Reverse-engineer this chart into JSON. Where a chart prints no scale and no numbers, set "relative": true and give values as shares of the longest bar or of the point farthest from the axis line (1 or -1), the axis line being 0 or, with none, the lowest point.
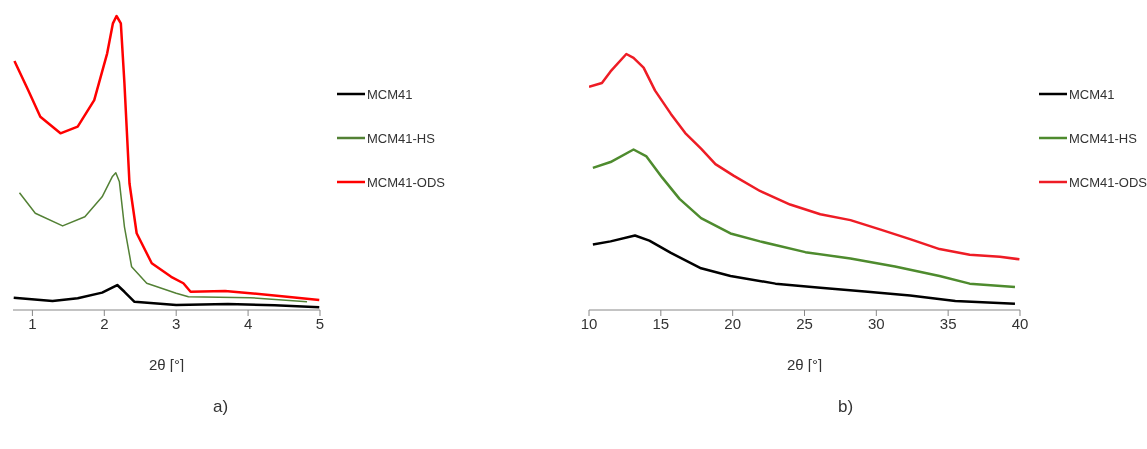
{
  "chart_data": [
    {
      "type": "line",
      "relative": true,
      "xlabel": "2θ [°]",
      "xlim": [
        0.73,
        5
      ],
      "xticks": [
        1,
        2,
        3,
        4,
        5
      ],
      "legend": "top right",
      "annotations": [
        "a)"
      ],
      "series": [
        {
          "name": "MCM41",
          "color": "#000000",
          "x": [
            0.74,
            1.28,
            1.63,
            1.97,
            2.18,
            2.28,
            2.42,
            3.0,
            3.72,
            4.37,
            4.99
          ],
          "values": [
            0.042,
            0.031,
            0.04,
            0.059,
            0.085,
            0.062,
            0.028,
            0.017,
            0.02,
            0.016,
            0.009
          ]
        },
        {
          "name": "MCM41-HS",
          "color": "#538135",
          "x": [
            0.82,
            1.04,
            1.42,
            1.73,
            1.97,
            2.11,
            2.16,
            2.21,
            2.28,
            2.38,
            2.59,
            3.0,
            3.17,
            4.03,
            4.82
          ],
          "values": [
            0.399,
            0.329,
            0.286,
            0.317,
            0.385,
            0.453,
            0.467,
            0.436,
            0.283,
            0.147,
            0.091,
            0.057,
            0.045,
            0.042,
            0.028
          ]
        },
        {
          "name": "MCM41-ODS",
          "color": "#ff0000",
          "x": [
            0.75,
            0.94,
            1.11,
            1.39,
            1.63,
            1.86,
            2.04,
            2.12,
            2.17,
            2.23,
            2.28,
            2.35,
            2.45,
            2.66,
            2.93,
            3.1,
            3.2,
            3.68,
            4.03,
            4.54,
            4.99
          ],
          "values": [
            0.847,
            0.748,
            0.657,
            0.601,
            0.624,
            0.714,
            0.873,
            0.975,
            1,
            0.975,
            0.771,
            0.431,
            0.261,
            0.159,
            0.113,
            0.091,
            0.062,
            0.065,
            0.057,
            0.045,
            0.034
          ]
        }
      ]
    },
    {
      "type": "line",
      "relative": true,
      "xlabel": "2θ [°]",
      "xlim": [
        10,
        40
      ],
      "xticks": [
        10,
        15,
        20,
        25,
        30,
        35,
        40
      ],
      "legend": "top right",
      "annotations": [
        "b)"
      ],
      "series": [
        {
          "name": "MCM41",
          "color": "#000000",
          "x": [
            10.27,
            11.5,
            13.2,
            14.2,
            15.7,
            17.8,
            19.85,
            22.98,
            26.1,
            29.2,
            32.35,
            35.5,
            39.65
          ],
          "values": [
            0.256,
            0.268,
            0.291,
            0.271,
            0.223,
            0.163,
            0.133,
            0.103,
            0.087,
            0.072,
            0.057,
            0.035,
            0.024
          ]
        },
        {
          "name": "MCM41-HS",
          "color": "#4e8b2e",
          "x": [
            10.27,
            11.5,
            13.1,
            14.0,
            15.1,
            16.3,
            17.8,
            19.85,
            21.9,
            25.06,
            28.2,
            31.3,
            34.4,
            36.5,
            39.65
          ],
          "values": [
            0.555,
            0.578,
            0.627,
            0.6,
            0.517,
            0.434,
            0.359,
            0.299,
            0.268,
            0.226,
            0.201,
            0.17,
            0.133,
            0.103,
            0.09
          ]
        },
        {
          "name": "MCM41-ODS",
          "color": "#ee1c25",
          "x": [
            10,
            10.9,
            11.5,
            12.6,
            13.1,
            13.8,
            14.6,
            15.7,
            16.7,
            17.8,
            18.8,
            20.06,
            21.9,
            24.0,
            26.1,
            28.2,
            30.3,
            32.4,
            34.4,
            36.5,
            38.6,
            39.96
          ],
          "values": [
            0.872,
            0.887,
            0.932,
            1,
            0.985,
            0.947,
            0.857,
            0.766,
            0.691,
            0.63,
            0.57,
            0.525,
            0.465,
            0.412,
            0.374,
            0.351,
            0.314,
            0.276,
            0.238,
            0.216,
            0.208,
            0.198
          ]
        }
      ]
    }
  ]
}
